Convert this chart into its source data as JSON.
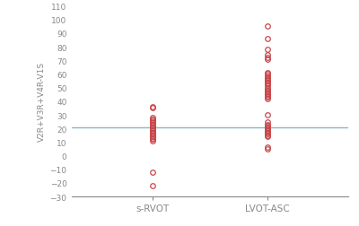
{
  "srvot_values": [
    36,
    35,
    28,
    27,
    26,
    25,
    24,
    23,
    22,
    21,
    20,
    19,
    18,
    17,
    16,
    15,
    14,
    13,
    12,
    11,
    -12,
    -22
  ],
  "lvot_values": [
    95,
    86,
    78,
    74,
    72,
    71,
    61,
    60,
    59,
    58,
    57,
    56,
    55,
    54,
    53,
    52,
    50,
    49,
    48,
    47,
    46,
    45,
    44,
    43,
    42,
    30,
    25,
    23,
    22,
    21,
    20,
    19,
    18,
    17,
    16,
    15,
    14,
    6,
    5
  ],
  "hline_y": 21,
  "hline_color": "#8ab4d0",
  "dot_color": "#c9474a",
  "dot_facecolor": "none",
  "xlabel_srvot": "s-RVOT",
  "xlabel_lvot": "LVOT-ASC",
  "ylabel": "V2R+V3R+V4R-V1S",
  "ylim": [
    -30,
    110
  ],
  "yticks": [
    -30,
    -20,
    -10,
    0,
    10,
    20,
    30,
    40,
    50,
    60,
    70,
    80,
    90,
    100,
    110
  ],
  "x_srvot": 1,
  "x_lvot": 2,
  "xlim": [
    0.3,
    2.7
  ],
  "background_color": "#ffffff",
  "marker_size": 4,
  "marker_linewidth": 0.9,
  "spine_color": "#888888",
  "tick_color": "#888888",
  "label_color": "#888888"
}
